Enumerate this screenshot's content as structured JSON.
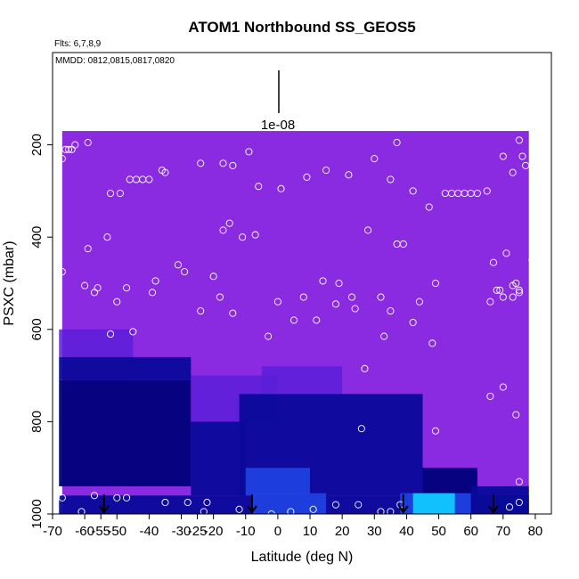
{
  "chart_data": {
    "type": "heatmap",
    "title": "ATOM1 Northbound SS_GEOS5",
    "flights_note": "Flts: 6,7,8,9",
    "dates_note": "MMDD: 0812,0815,0817,0820",
    "xlabel": "Latitude (deg N)",
    "ylabel": "PSXC (mbar)",
    "xlim": [
      -70,
      85
    ],
    "ylim": [
      1000,
      0
    ],
    "x_ticks": [
      -70,
      -60,
      -55,
      -50,
      -40,
      -30,
      -25,
      -20,
      -10,
      0,
      10,
      20,
      30,
      40,
      50,
      60,
      70,
      80
    ],
    "y_ticks": [
      200,
      400,
      600,
      800,
      1000
    ],
    "scale_bar_label": "1e-08",
    "scale_bar_x": 0,
    "background_color": "#8a2be2",
    "colors": {
      "base": "#8a2be2",
      "mid": "#5a1fd8",
      "dark": "#0a0a9a",
      "navy": "#00007a",
      "blue": "#2040e0",
      "cyan": "#10c8ff",
      "arrow": "#000000",
      "marker": "#ffffff"
    },
    "coverage": {
      "lat_start": -67,
      "lat_end": 78,
      "p_top": 170,
      "p_bottom": 1000
    },
    "regions": [
      {
        "lat": [
          -68,
          -45
        ],
        "p": [
          600,
          660
        ],
        "level": "mid"
      },
      {
        "lat": [
          -68,
          -27
        ],
        "p": [
          660,
          710
        ],
        "level": "dark"
      },
      {
        "lat": [
          -68,
          -27
        ],
        "p": [
          710,
          940
        ],
        "level": "navy"
      },
      {
        "lat": [
          -27,
          0
        ],
        "p": [
          700,
          800
        ],
        "level": "mid"
      },
      {
        "lat": [
          -27,
          -10
        ],
        "p": [
          800,
          960
        ],
        "level": "dark"
      },
      {
        "lat": [
          -5,
          20
        ],
        "p": [
          680,
          740
        ],
        "level": "mid"
      },
      {
        "lat": [
          -12,
          45
        ],
        "p": [
          740,
          960
        ],
        "level": "dark"
      },
      {
        "lat": [
          -10,
          10
        ],
        "p": [
          900,
          960
        ],
        "level": "blue"
      },
      {
        "lat": [
          45,
          62
        ],
        "p": [
          900,
          960
        ],
        "level": "navy"
      },
      {
        "lat": [
          -68,
          78
        ],
        "p": [
          960,
          1000
        ],
        "level": "dark"
      },
      {
        "lat": [
          -8,
          15
        ],
        "p": [
          955,
          1000
        ],
        "level": "blue"
      },
      {
        "lat": [
          38,
          60
        ],
        "p": [
          955,
          1000
        ],
        "level": "blue"
      },
      {
        "lat": [
          42,
          55
        ],
        "p": [
          955,
          1000
        ],
        "level": "cyan"
      },
      {
        "lat": [
          60,
          78
        ],
        "p": [
          940,
          1000
        ],
        "level": "dark"
      }
    ],
    "arrows_lat": [
      -54,
      -8,
      39,
      67
    ],
    "observations": [
      {
        "x": -67,
        "y": 230
      },
      {
        "x": -66,
        "y": 210
      },
      {
        "x": -65,
        "y": 210
      },
      {
        "x": -64,
        "y": 210
      },
      {
        "x": -63,
        "y": 200
      },
      {
        "x": -59,
        "y": 195
      },
      {
        "x": -67,
        "y": 475
      },
      {
        "x": -60,
        "y": 505
      },
      {
        "x": -59,
        "y": 425
      },
      {
        "x": -57,
        "y": 520
      },
      {
        "x": -56,
        "y": 510
      },
      {
        "x": -53,
        "y": 400
      },
      {
        "x": -52,
        "y": 305
      },
      {
        "x": -49,
        "y": 305
      },
      {
        "x": -46,
        "y": 275
      },
      {
        "x": -44,
        "y": 275
      },
      {
        "x": -42,
        "y": 275
      },
      {
        "x": -40,
        "y": 275
      },
      {
        "x": -36,
        "y": 255
      },
      {
        "x": -35,
        "y": 260
      },
      {
        "x": -50,
        "y": 540
      },
      {
        "x": -47,
        "y": 510
      },
      {
        "x": -45,
        "y": 605
      },
      {
        "x": -52,
        "y": 610
      },
      {
        "x": -39,
        "y": 520
      },
      {
        "x": -38,
        "y": 495
      },
      {
        "x": -31,
        "y": 460
      },
      {
        "x": -29,
        "y": 475
      },
      {
        "x": -24,
        "y": 240
      },
      {
        "x": -17,
        "y": 240
      },
      {
        "x": -14,
        "y": 245
      },
      {
        "x": -17,
        "y": 385
      },
      {
        "x": -15,
        "y": 370
      },
      {
        "x": -11,
        "y": 400
      },
      {
        "x": -7,
        "y": 395
      },
      {
        "x": -6,
        "y": 290
      },
      {
        "x": -9,
        "y": 215
      },
      {
        "x": 1,
        "y": 295
      },
      {
        "x": 9,
        "y": 270
      },
      {
        "x": 15,
        "y": 255
      },
      {
        "x": 22,
        "y": 265
      },
      {
        "x": 30,
        "y": 230
      },
      {
        "x": 37,
        "y": 195
      },
      {
        "x": 35,
        "y": 275
      },
      {
        "x": -20,
        "y": 485
      },
      {
        "x": -18,
        "y": 530
      },
      {
        "x": -24,
        "y": 560
      },
      {
        "x": -14,
        "y": 565
      },
      {
        "x": -3,
        "y": 615
      },
      {
        "x": 0,
        "y": 540
      },
      {
        "x": 5,
        "y": 580
      },
      {
        "x": 8,
        "y": 530
      },
      {
        "x": 12,
        "y": 580
      },
      {
        "x": 14,
        "y": 495
      },
      {
        "x": 18,
        "y": 545
      },
      {
        "x": 19,
        "y": 500
      },
      {
        "x": 23,
        "y": 530
      },
      {
        "x": 24,
        "y": 555
      },
      {
        "x": 28,
        "y": 385
      },
      {
        "x": 32,
        "y": 530
      },
      {
        "x": 33,
        "y": 615
      },
      {
        "x": 35,
        "y": 560
      },
      {
        "x": 37,
        "y": 415
      },
      {
        "x": 39,
        "y": 415
      },
      {
        "x": 42,
        "y": 300
      },
      {
        "x": 42,
        "y": 585
      },
      {
        "x": 44,
        "y": 540
      },
      {
        "x": 47,
        "y": 335
      },
      {
        "x": 48,
        "y": 630
      },
      {
        "x": 49,
        "y": 500
      },
      {
        "x": 52,
        "y": 305
      },
      {
        "x": 54,
        "y": 305
      },
      {
        "x": 56,
        "y": 305
      },
      {
        "x": 58,
        "y": 305
      },
      {
        "x": 60,
        "y": 305
      },
      {
        "x": 62,
        "y": 305
      },
      {
        "x": 65,
        "y": 300
      },
      {
        "x": 67,
        "y": 455
      },
      {
        "x": 70,
        "y": 225
      },
      {
        "x": 73,
        "y": 260
      },
      {
        "x": 75,
        "y": 190
      },
      {
        "x": 76,
        "y": 225
      },
      {
        "x": 77,
        "y": 245
      },
      {
        "x": 71,
        "y": 435
      },
      {
        "x": 73,
        "y": 505
      },
      {
        "x": 74,
        "y": 500
      },
      {
        "x": 75,
        "y": 515
      },
      {
        "x": 75,
        "y": 520
      },
      {
        "x": 73,
        "y": 530
      },
      {
        "x": 70,
        "y": 530
      },
      {
        "x": 69,
        "y": 515
      },
      {
        "x": 66,
        "y": 540
      },
      {
        "x": 68,
        "y": 515
      },
      {
        "x": 79,
        "y": 450
      },
      {
        "x": 80,
        "y": 455
      },
      {
        "x": 66,
        "y": 745
      },
      {
        "x": 70,
        "y": 725
      },
      {
        "x": 74,
        "y": 785
      },
      {
        "x": 75,
        "y": 930
      },
      {
        "x": 80,
        "y": 910
      },
      {
        "x": 27,
        "y": 685
      },
      {
        "x": 26,
        "y": 815
      },
      {
        "x": 49,
        "y": 820
      },
      {
        "x": -67,
        "y": 965
      },
      {
        "x": -61,
        "y": 995
      },
      {
        "x": -57,
        "y": 960
      },
      {
        "x": -50,
        "y": 965
      },
      {
        "x": -47,
        "y": 965
      },
      {
        "x": -35,
        "y": 975
      },
      {
        "x": -28,
        "y": 975
      },
      {
        "x": -22,
        "y": 975
      },
      {
        "x": -23,
        "y": 995
      },
      {
        "x": -12,
        "y": 990
      },
      {
        "x": -2,
        "y": 1000
      },
      {
        "x": 4,
        "y": 995
      },
      {
        "x": 11,
        "y": 990
      },
      {
        "x": 18,
        "y": 980
      },
      {
        "x": 25,
        "y": 980
      },
      {
        "x": 32,
        "y": 995
      },
      {
        "x": 35,
        "y": 995
      },
      {
        "x": 38,
        "y": 980
      },
      {
        "x": 72,
        "y": 985
      },
      {
        "x": 75,
        "y": 975
      }
    ]
  }
}
